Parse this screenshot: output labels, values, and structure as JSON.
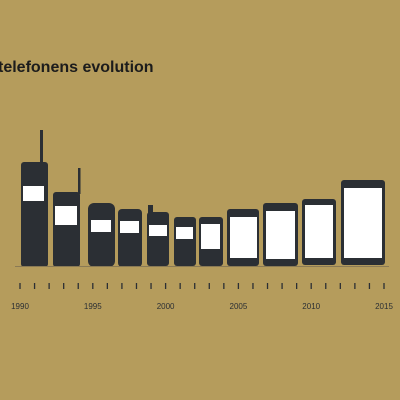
{
  "title": "telefonens evolution",
  "timeline": {
    "labels": [
      "1990",
      "1995",
      "2000",
      "2005",
      "2010",
      "2015"
    ]
  }
}
